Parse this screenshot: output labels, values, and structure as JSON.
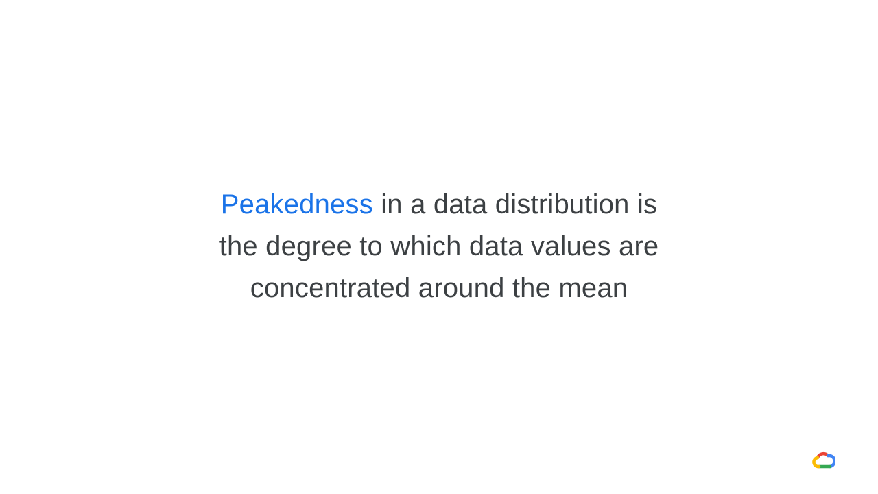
{
  "statement": {
    "highlight": "Peakedness",
    "line1_rest": " in a data distribution is",
    "line2": "the degree to which data values are",
    "line3": "concentrated around the mean"
  },
  "colors": {
    "text": "#3c4043",
    "highlight": "#1a73e8",
    "background": "#ffffff"
  },
  "logo": {
    "icon": "google-cloud-logo-icon",
    "colors": [
      "#ea4335",
      "#4285f4",
      "#34a853",
      "#fbbc04"
    ]
  }
}
